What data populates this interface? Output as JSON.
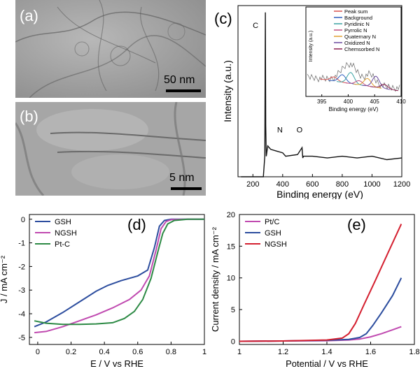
{
  "panel_a": {
    "label": "(a)",
    "scale": "50 nm"
  },
  "panel_b": {
    "label": "(b)",
    "scale": "5 nm"
  },
  "chart_data": [
    {
      "id": "c",
      "panel_label": "(c)",
      "type": "line",
      "xlabel": "Binding energy (eV)",
      "ylabel": "Intensity (a.u.)",
      "xlim": [
        100,
        1200
      ],
      "xticks": [
        200,
        400,
        600,
        800,
        1000,
        1200
      ],
      "x": [
        120,
        200,
        270,
        280,
        284,
        286,
        290,
        300,
        320,
        360,
        400,
        420,
        500,
        530,
        535,
        540,
        600,
        700,
        800,
        900,
        1000,
        1100,
        1200
      ],
      "values": [
        0,
        0,
        0,
        0.12,
        0.96,
        0.3,
        0.12,
        0.18,
        0.16,
        0.15,
        0.14,
        0.12,
        0.13,
        0.17,
        0.11,
        0.12,
        0.12,
        0.11,
        0.12,
        0.11,
        0.12,
        0.1,
        0.11
      ],
      "annotations": [
        {
          "text": "C",
          "x": 284
        },
        {
          "text": "N",
          "x": 400
        },
        {
          "text": "O",
          "x": 532
        }
      ],
      "inset": {
        "xlabel": "Binding energy (eV)",
        "ylabel": "Intensity (a.u.)",
        "xlim": [
          392,
          410
        ],
        "xticks": [
          395,
          400,
          405,
          410
        ],
        "legend": [
          {
            "name": "Peak sum",
            "color": "#d9534f"
          },
          {
            "name": "Background",
            "color": "#2f5fbf"
          },
          {
            "name": "Pyridinic N",
            "color": "#3aa3a3"
          },
          {
            "name": "Pyrrolic N",
            "color": "#c05080"
          },
          {
            "name": "Quaternary N",
            "color": "#e0a030"
          },
          {
            "name": "Oxidized N",
            "color": "#6a4aa0"
          },
          {
            "name": "Chemsorbed N",
            "color": "#8a2050"
          }
        ]
      }
    },
    {
      "id": "d",
      "panel_label": "(d)",
      "type": "line",
      "xlabel": "E / V vs RHE",
      "ylabel": "J / mA cm⁻²",
      "xlim": [
        -0.05,
        1.0
      ],
      "ylim": [
        -5.3,
        0.2
      ],
      "xticks": [
        0.0,
        0.2,
        0.4,
        0.6,
        0.8,
        1.0
      ],
      "yticks": [
        0,
        -1,
        -2,
        -3,
        -4,
        -5
      ],
      "legend_position": "top-left",
      "series": [
        {
          "name": "GSH",
          "color": "#2c4d9e",
          "x": [
            -0.02,
            0.05,
            0.15,
            0.25,
            0.35,
            0.42,
            0.5,
            0.6,
            0.66,
            0.7,
            0.73,
            0.76,
            0.8,
            0.9,
            1.0
          ],
          "y": [
            -4.55,
            -4.35,
            -3.95,
            -3.5,
            -3.05,
            -2.8,
            -2.6,
            -2.4,
            -2.15,
            -1.2,
            -0.3,
            -0.05,
            0,
            0,
            0
          ]
        },
        {
          "name": "NGSH",
          "color": "#c04ab0",
          "x": [
            -0.02,
            0.05,
            0.15,
            0.25,
            0.35,
            0.45,
            0.55,
            0.62,
            0.67,
            0.71,
            0.74,
            0.77,
            0.8,
            0.9,
            1.0
          ],
          "y": [
            -4.8,
            -4.75,
            -4.55,
            -4.3,
            -4.05,
            -3.75,
            -3.4,
            -3.0,
            -2.4,
            -1.3,
            -0.4,
            -0.1,
            -0.02,
            0,
            0
          ]
        },
        {
          "name": "Pt-C",
          "color": "#2d8a45",
          "x": [
            -0.02,
            0.05,
            0.15,
            0.25,
            0.35,
            0.45,
            0.52,
            0.58,
            0.63,
            0.68,
            0.72,
            0.75,
            0.78,
            0.82,
            0.9,
            1.0
          ],
          "y": [
            -4.3,
            -4.4,
            -4.45,
            -4.45,
            -4.43,
            -4.38,
            -4.2,
            -3.9,
            -3.4,
            -2.5,
            -1.4,
            -0.6,
            -0.2,
            -0.05,
            0,
            0
          ]
        }
      ]
    },
    {
      "id": "e",
      "panel_label": "(e)",
      "type": "line",
      "xlabel": "Potential / V vs RHE",
      "ylabel": "Current density / mA cm⁻²",
      "xlim": [
        1.0,
        1.8
      ],
      "ylim": [
        -0.5,
        20
      ],
      "xticks": [
        1.0,
        1.2,
        1.4,
        1.6,
        1.8
      ],
      "yticks": [
        0,
        5,
        10,
        15,
        20
      ],
      "legend_position": "top-left",
      "series": [
        {
          "name": "Pt/C",
          "color": "#c04ab0",
          "x": [
            1.0,
            1.2,
            1.4,
            1.5,
            1.55,
            1.6,
            1.65,
            1.7,
            1.74
          ],
          "y": [
            0,
            0.05,
            0.1,
            0.2,
            0.35,
            0.7,
            1.2,
            1.8,
            2.3
          ]
        },
        {
          "name": "GSH",
          "color": "#2c4d9e",
          "x": [
            1.0,
            1.2,
            1.4,
            1.5,
            1.55,
            1.58,
            1.61,
            1.65,
            1.7,
            1.74
          ],
          "y": [
            0,
            0.05,
            0.15,
            0.3,
            0.6,
            1.2,
            2.5,
            4.5,
            7.2,
            10.0
          ]
        },
        {
          "name": "NGSH",
          "color": "#d42030",
          "x": [
            1.0,
            1.2,
            1.4,
            1.47,
            1.5,
            1.53,
            1.57,
            1.62,
            1.68,
            1.74
          ],
          "y": [
            0,
            0.05,
            0.2,
            0.5,
            1.2,
            2.8,
            5.8,
            9.5,
            14.0,
            18.5
          ]
        }
      ]
    }
  ]
}
